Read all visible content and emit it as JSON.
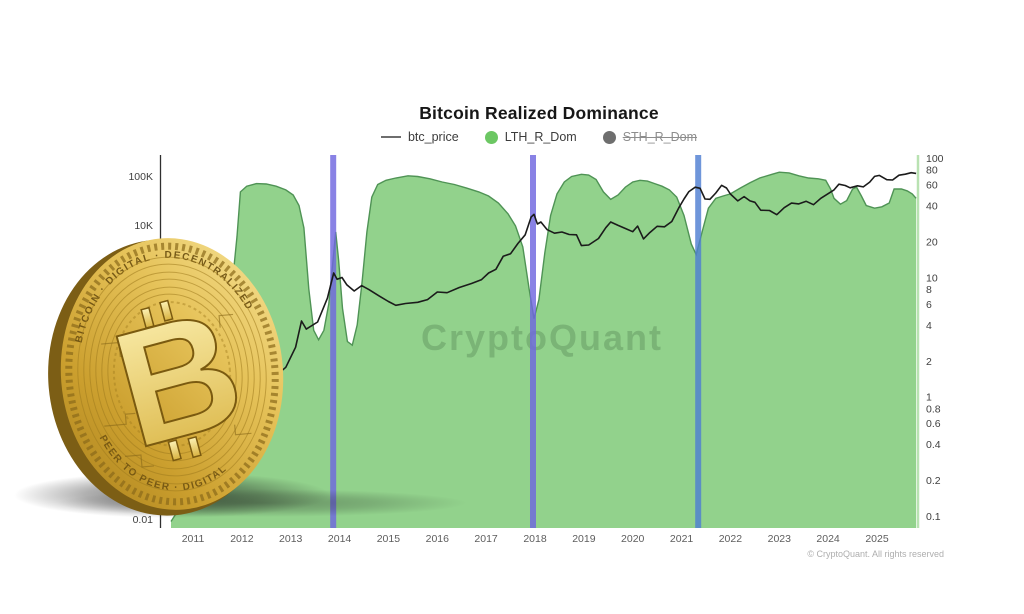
{
  "title": "Bitcoin Realized Dominance",
  "watermark": "CryptoQuant",
  "copyright": "© CryptoQuant. All rights reserved",
  "legend": [
    {
      "label": "btc_price",
      "marker": "line",
      "color": "#6e6e6e",
      "disabled": false
    },
    {
      "label": "LTH_R_Dom",
      "marker": "dot",
      "color": "#6cc763",
      "disabled": false
    },
    {
      "label": "STH_R_Dom",
      "marker": "dot",
      "color": "#6e6e6e",
      "disabled": true
    }
  ],
  "coin": {
    "symbol": "B",
    "ring_text_top": "BITCOIN · DIGITAL · DECENTRALIZED",
    "ring_text_bottom": "PEER TO PEER · DIGITAL"
  },
  "chart_data": {
    "type": "area",
    "title": "Bitcoin Realized Dominance",
    "grid": false,
    "legend_position": "top-center",
    "x_axis": {
      "range": [
        2010.5,
        2025.85
      ],
      "ticks": [
        2011,
        2012,
        2013,
        2014,
        2015,
        2016,
        2017,
        2018,
        2019,
        2020,
        2021,
        2022,
        2023,
        2024,
        2025
      ]
    },
    "left_axis": {
      "scale": "log",
      "range": [
        0.0066,
        270000
      ],
      "ticks": [
        {
          "label": "100K",
          "value": 100000
        },
        {
          "label": "10K",
          "value": 10000
        },
        {
          "label": "0.01",
          "value": 0.01
        }
      ]
    },
    "right_axis": {
      "scale": "log",
      "range": [
        0.075,
        100
      ],
      "line_color": "#b9e2b2",
      "ticks": [
        {
          "label": "100",
          "value": 100
        },
        {
          "label": "80",
          "value": 80
        },
        {
          "label": "60",
          "value": 60
        },
        {
          "label": "40",
          "value": 40
        },
        {
          "label": "20",
          "value": 20
        },
        {
          "label": "10",
          "value": 10
        },
        {
          "label": "8",
          "value": 8
        },
        {
          "label": "6",
          "value": 6
        },
        {
          "label": "4",
          "value": 4
        },
        {
          "label": "2",
          "value": 2
        },
        {
          "label": "1",
          "value": 1
        },
        {
          "label": "0.8",
          "value": 0.8
        },
        {
          "label": "0.6",
          "value": 0.6
        },
        {
          "label": "0.4",
          "value": 0.4
        },
        {
          "label": "0.2",
          "value": 0.2
        },
        {
          "label": "0.1",
          "value": 0.1
        }
      ]
    },
    "event_lines": {
      "opacity": 0.82,
      "width": 6,
      "items": [
        {
          "year": 2013.87,
          "color": "#6f66df"
        },
        {
          "year": 2017.96,
          "color": "#6f66df"
        },
        {
          "year": 2021.34,
          "color": "#4f7fd2"
        }
      ]
    },
    "series": [
      {
        "name": "btc_price",
        "type": "line",
        "axis": "left",
        "color": "#1b1b1b",
        "visible": true,
        "points": [
          [
            2010.6,
            0.07
          ],
          [
            2010.9,
            0.25
          ],
          [
            2011.2,
            1
          ],
          [
            2011.45,
            25
          ],
          [
            2011.7,
            6
          ],
          [
            2011.95,
            3.2
          ],
          [
            2012.3,
            5
          ],
          [
            2012.6,
            7
          ],
          [
            2012.9,
            12.5
          ],
          [
            2013.1,
            32
          ],
          [
            2013.22,
            110
          ],
          [
            2013.32,
            75
          ],
          [
            2013.55,
            105
          ],
          [
            2013.75,
            320
          ],
          [
            2013.88,
            1050
          ],
          [
            2013.95,
            780
          ],
          [
            2014.05,
            850
          ],
          [
            2014.15,
            600
          ],
          [
            2014.3,
            450
          ],
          [
            2014.45,
            580
          ],
          [
            2014.6,
            480
          ],
          [
            2014.8,
            360
          ],
          [
            2015.0,
            275
          ],
          [
            2015.15,
            230
          ],
          [
            2015.35,
            250
          ],
          [
            2015.6,
            265
          ],
          [
            2015.8,
            300
          ],
          [
            2016.0,
            430
          ],
          [
            2016.2,
            415
          ],
          [
            2016.45,
            530
          ],
          [
            2016.7,
            640
          ],
          [
            2016.9,
            760
          ],
          [
            2017.05,
            1050
          ],
          [
            2017.2,
            1250
          ],
          [
            2017.35,
            2300
          ],
          [
            2017.5,
            2600
          ],
          [
            2017.65,
            4200
          ],
          [
            2017.8,
            6300
          ],
          [
            2017.92,
            14500
          ],
          [
            2017.98,
            16500
          ],
          [
            2018.05,
            10500
          ],
          [
            2018.12,
            11500
          ],
          [
            2018.25,
            8000
          ],
          [
            2018.4,
            6800
          ],
          [
            2018.55,
            7200
          ],
          [
            2018.7,
            6400
          ],
          [
            2018.85,
            6300
          ],
          [
            2018.95,
            3800
          ],
          [
            2019.1,
            3900
          ],
          [
            2019.3,
            5300
          ],
          [
            2019.45,
            8800
          ],
          [
            2019.55,
            11500
          ],
          [
            2019.7,
            9800
          ],
          [
            2019.85,
            8500
          ],
          [
            2020.0,
            7300
          ],
          [
            2020.1,
            9500
          ],
          [
            2020.22,
            5200
          ],
          [
            2020.35,
            7000
          ],
          [
            2020.5,
            9400
          ],
          [
            2020.65,
            9200
          ],
          [
            2020.8,
            11800
          ],
          [
            2020.95,
            23000
          ],
          [
            2021.05,
            34000
          ],
          [
            2021.15,
            48000
          ],
          [
            2021.28,
            59000
          ],
          [
            2021.38,
            56000
          ],
          [
            2021.48,
            34000
          ],
          [
            2021.58,
            33500
          ],
          [
            2021.7,
            45000
          ],
          [
            2021.82,
            64500
          ],
          [
            2021.92,
            57000
          ],
          [
            2022.0,
            43000
          ],
          [
            2022.15,
            31000
          ],
          [
            2022.28,
            38000
          ],
          [
            2022.4,
            31000
          ],
          [
            2022.5,
            29000
          ],
          [
            2022.62,
            20000
          ],
          [
            2022.8,
            19800
          ],
          [
            2022.95,
            16200
          ],
          [
            2023.1,
            22500
          ],
          [
            2023.25,
            28000
          ],
          [
            2023.4,
            27000
          ],
          [
            2023.55,
            30500
          ],
          [
            2023.7,
            26000
          ],
          [
            2023.85,
            35000
          ],
          [
            2024.0,
            43500
          ],
          [
            2024.12,
            52000
          ],
          [
            2024.22,
            68000
          ],
          [
            2024.35,
            64000
          ],
          [
            2024.45,
            57500
          ],
          [
            2024.6,
            63000
          ],
          [
            2024.72,
            60000
          ],
          [
            2024.85,
            75000
          ],
          [
            2024.95,
            98000
          ],
          [
            2025.05,
            103000
          ],
          [
            2025.2,
            84000
          ],
          [
            2025.32,
            83000
          ],
          [
            2025.45,
            104000
          ],
          [
            2025.58,
            109000
          ],
          [
            2025.7,
            117000
          ],
          [
            2025.8,
            113000
          ]
        ]
      },
      {
        "name": "LTH_R_Dom",
        "type": "area",
        "axis": "right",
        "color": "#92d28c",
        "edge_color": "#4f9355",
        "visible": true,
        "points": [
          [
            2010.55,
            0.09
          ],
          [
            2010.8,
            0.13
          ],
          [
            2011.1,
            0.35
          ],
          [
            2011.4,
            1.1
          ],
          [
            2011.6,
            2.5
          ],
          [
            2011.78,
            7
          ],
          [
            2011.9,
            22
          ],
          [
            2011.97,
            52
          ],
          [
            2012.1,
            58
          ],
          [
            2012.3,
            61
          ],
          [
            2012.5,
            60.5
          ],
          [
            2012.7,
            58
          ],
          [
            2012.9,
            54
          ],
          [
            2013.05,
            49
          ],
          [
            2013.17,
            40
          ],
          [
            2013.27,
            26
          ],
          [
            2013.37,
            8
          ],
          [
            2013.47,
            3.6
          ],
          [
            2013.57,
            3.0
          ],
          [
            2013.68,
            3.6
          ],
          [
            2013.78,
            6
          ],
          [
            2013.86,
            13
          ],
          [
            2013.92,
            24
          ],
          [
            2013.98,
            14
          ],
          [
            2014.06,
            5.5
          ],
          [
            2014.16,
            2.9
          ],
          [
            2014.26,
            2.7
          ],
          [
            2014.36,
            4
          ],
          [
            2014.46,
            9
          ],
          [
            2014.56,
            24
          ],
          [
            2014.66,
            47
          ],
          [
            2014.78,
            60
          ],
          [
            2014.95,
            65
          ],
          [
            2015.15,
            68
          ],
          [
            2015.4,
            71
          ],
          [
            2015.6,
            70
          ],
          [
            2015.85,
            67
          ],
          [
            2016.1,
            63
          ],
          [
            2016.35,
            60
          ],
          [
            2016.6,
            56
          ],
          [
            2016.85,
            52
          ],
          [
            2017.05,
            48
          ],
          [
            2017.25,
            42
          ],
          [
            2017.45,
            34
          ],
          [
            2017.6,
            27
          ],
          [
            2017.75,
            18
          ],
          [
            2017.88,
            8
          ],
          [
            2017.98,
            4.5
          ],
          [
            2018.08,
            6.5
          ],
          [
            2018.2,
            16
          ],
          [
            2018.32,
            33
          ],
          [
            2018.45,
            50
          ],
          [
            2018.6,
            63
          ],
          [
            2018.75,
            70
          ],
          [
            2018.95,
            73
          ],
          [
            2019.1,
            72
          ],
          [
            2019.25,
            66
          ],
          [
            2019.4,
            52
          ],
          [
            2019.55,
            45
          ],
          [
            2019.7,
            49
          ],
          [
            2019.85,
            57
          ],
          [
            2020.0,
            63
          ],
          [
            2020.15,
            65
          ],
          [
            2020.3,
            64
          ],
          [
            2020.45,
            61
          ],
          [
            2020.6,
            58
          ],
          [
            2020.75,
            54
          ],
          [
            2020.9,
            47
          ],
          [
            2021.05,
            33
          ],
          [
            2021.2,
            19
          ],
          [
            2021.3,
            15.5
          ],
          [
            2021.42,
            24
          ],
          [
            2021.55,
            38
          ],
          [
            2021.7,
            46
          ],
          [
            2021.85,
            48
          ],
          [
            2022.0,
            50
          ],
          [
            2022.2,
            56
          ],
          [
            2022.4,
            62
          ],
          [
            2022.6,
            68
          ],
          [
            2022.85,
            73
          ],
          [
            2023.0,
            76
          ],
          [
            2023.2,
            75
          ],
          [
            2023.4,
            71
          ],
          [
            2023.6,
            68
          ],
          [
            2023.8,
            67
          ],
          [
            2023.95,
            65
          ],
          [
            2024.05,
            55
          ],
          [
            2024.12,
            46
          ],
          [
            2024.25,
            41
          ],
          [
            2024.38,
            44
          ],
          [
            2024.5,
            55
          ],
          [
            2024.58,
            57
          ],
          [
            2024.68,
            48
          ],
          [
            2024.78,
            40
          ],
          [
            2024.95,
            38
          ],
          [
            2025.1,
            39
          ],
          [
            2025.25,
            42
          ],
          [
            2025.35,
            55
          ],
          [
            2025.5,
            55
          ],
          [
            2025.62,
            53
          ],
          [
            2025.72,
            50
          ],
          [
            2025.8,
            46
          ]
        ]
      },
      {
        "name": "STH_R_Dom",
        "type": "area",
        "axis": "right",
        "color": "#7a7a7a",
        "visible": false,
        "points": []
      }
    ]
  }
}
